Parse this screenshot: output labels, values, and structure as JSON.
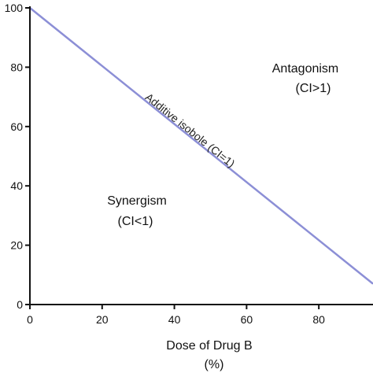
{
  "chart_data": {
    "type": "line",
    "title": "",
    "xlabel": "Dose of Drug B",
    "xlabel_unit": "(%)",
    "ylabel": "",
    "xlim": [
      0,
      95
    ],
    "ylim": [
      0,
      100
    ],
    "x_ticks": [
      0,
      20,
      40,
      60,
      80
    ],
    "y_ticks": [
      0,
      20,
      40,
      60,
      80,
      100
    ],
    "grid": false,
    "series": [
      {
        "name": "Additive isobole (CI=1)",
        "color": "#8c8fd6",
        "x": [
          0,
          95
        ],
        "y": [
          100,
          7
        ]
      }
    ],
    "annotations": {
      "antagonism": {
        "line1": "Antagonism",
        "line2": "(CI>1)"
      },
      "synergism": {
        "line1": "Synergism",
        "line2": "(CI<1)"
      }
    }
  }
}
